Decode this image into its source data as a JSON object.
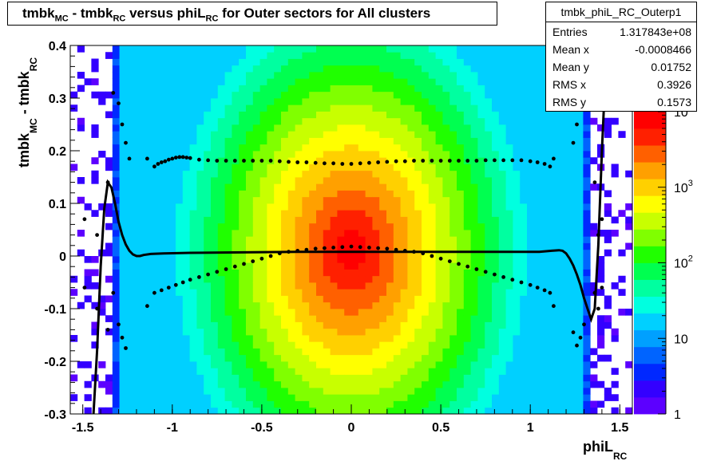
{
  "title": {
    "parts": [
      {
        "t": "tmbk",
        "sub": "MC"
      },
      {
        "t": " - tmbk",
        "sub": "RC"
      },
      {
        "t": " versus phiL",
        "sub": "RC"
      },
      {
        "t": " for Outer sectors for All clusters",
        "sub": ""
      }
    ]
  },
  "stats": {
    "name": "tmbk_phiL_RC_Outerp1",
    "rows": [
      {
        "key": "Entries",
        "value": "1.317843e+08"
      },
      {
        "key": "Mean x",
        "value": "-0.0008466"
      },
      {
        "key": "Mean y",
        "value": "0.01752"
      },
      {
        "key": "RMS x",
        "value": "0.3926"
      },
      {
        "key": "RMS y",
        "value": "0.1573"
      }
    ]
  },
  "chart_data": {
    "type": "heatmap",
    "xlabel": {
      "text": "phiL",
      "sub": "RC"
    },
    "ylabel": {
      "text": "tmbk",
      "sub1": "MC",
      "mid": " - tmbk",
      "sub2": "RC"
    },
    "xlim": [
      -1.57,
      1.57
    ],
    "ylim": [
      -0.3,
      0.4
    ],
    "x_ticks": [
      "-1.5",
      "-1",
      "-0.5",
      "0",
      "0.5",
      "1",
      "1.5"
    ],
    "x_tick_values": [
      -1.5,
      -1,
      -0.5,
      0,
      0.5,
      1,
      1.5
    ],
    "y_ticks": [
      "-0.3",
      "-0.2",
      "-0.1",
      "0",
      "0.1",
      "0.2",
      "0.3",
      "0.4"
    ],
    "y_tick_values": [
      -0.3,
      -0.2,
      -0.1,
      0,
      0.1,
      0.2,
      0.3,
      0.4
    ],
    "z_scale": "log",
    "z_range": [
      1,
      10000
    ],
    "z_ticks": [
      {
        "base": "1",
        "exp": "",
        "value": 1
      },
      {
        "base": "10",
        "exp": "",
        "value": 10
      },
      {
        "base": "10",
        "exp": "2",
        "value": 100
      },
      {
        "base": "10",
        "exp": "3",
        "value": 1000
      },
      {
        "base": "10",
        "exp": "4",
        "value": 10000
      }
    ],
    "palette": [
      "#5c00ff",
      "#3300ff",
      "#0028ff",
      "#0064ff",
      "#00a0ff",
      "#00d0ff",
      "#00ffe0",
      "#00ffa0",
      "#00ff50",
      "#20ff00",
      "#80ff00",
      "#c8ff00",
      "#ffff00",
      "#ffd000",
      "#ffa000",
      "#ff6000",
      "#ff2000",
      "#ff0000"
    ],
    "series": [
      {
        "name": "",
        "style": "points",
        "x": [
          -1.49,
          -1.42,
          -1.36,
          -1.33,
          -1.3,
          -1.28,
          -1.26,
          -1.24,
          -1.14,
          -1.1,
          -1.08,
          -1.06,
          -1.04,
          -1.02,
          -1.0,
          -0.98,
          -0.96,
          -0.94,
          -0.92,
          -0.9,
          -0.85,
          -0.8,
          -0.75,
          -0.7,
          -0.65,
          -0.6,
          -0.55,
          -0.5,
          -0.45,
          -0.4,
          -0.35,
          -0.3,
          -0.25,
          -0.2,
          -0.15,
          -0.1,
          -0.05,
          0.0,
          0.05,
          0.1,
          0.15,
          0.2,
          0.25,
          0.3,
          0.35,
          0.4,
          0.45,
          0.5,
          0.55,
          0.6,
          0.65,
          0.7,
          0.75,
          0.8,
          0.85,
          0.9,
          0.95,
          1.0,
          1.04,
          1.08,
          1.11,
          1.13,
          1.24,
          1.26,
          1.28,
          1.3,
          1.36,
          1.38,
          1.4
        ],
        "y": [
          0.07,
          0.04,
          0.14,
          0.31,
          0.29,
          0.25,
          0.215,
          0.185,
          0.185,
          0.17,
          0.175,
          0.178,
          0.18,
          0.183,
          0.185,
          0.187,
          0.188,
          0.188,
          0.187,
          0.186,
          0.183,
          0.182,
          0.181,
          0.181,
          0.181,
          0.181,
          0.181,
          0.181,
          0.181,
          0.18,
          0.179,
          0.178,
          0.178,
          0.177,
          0.176,
          0.176,
          0.175,
          0.175,
          0.176,
          0.177,
          0.178,
          0.179,
          0.18,
          0.18,
          0.181,
          0.181,
          0.181,
          0.181,
          0.181,
          0.181,
          0.181,
          0.181,
          0.182,
          0.182,
          0.182,
          0.182,
          0.182,
          0.18,
          0.178,
          0.175,
          0.17,
          0.185,
          0.215,
          0.25,
          0.29,
          0.31,
          0.14,
          0.04,
          0.07
        ]
      },
      {
        "name": "",
        "style": "points",
        "x": [
          -1.49,
          -1.42,
          -1.36,
          -1.33,
          -1.3,
          -1.28,
          -1.26,
          -1.14,
          -1.1,
          -1.06,
          -1.02,
          -0.98,
          -0.94,
          -0.9,
          -0.85,
          -0.8,
          -0.75,
          -0.7,
          -0.65,
          -0.6,
          -0.55,
          -0.5,
          -0.45,
          -0.4,
          -0.35,
          -0.3,
          -0.25,
          -0.2,
          -0.15,
          -0.1,
          -0.05,
          0.0,
          0.05,
          0.1,
          0.15,
          0.2,
          0.25,
          0.3,
          0.35,
          0.4,
          0.45,
          0.5,
          0.55,
          0.6,
          0.65,
          0.7,
          0.75,
          0.8,
          0.85,
          0.9,
          0.95,
          1.0,
          1.04,
          1.08,
          1.11,
          1.13,
          1.24,
          1.26,
          1.28,
          1.3,
          1.36,
          1.38,
          1.4
        ],
        "y": [
          -0.06,
          -0.1,
          -0.14,
          -0.07,
          -0.13,
          -0.155,
          -0.175,
          -0.095,
          -0.07,
          -0.065,
          -0.06,
          -0.055,
          -0.05,
          -0.045,
          -0.04,
          -0.035,
          -0.03,
          -0.025,
          -0.02,
          -0.015,
          -0.01,
          -0.005,
          0.0,
          0.005,
          0.008,
          0.01,
          0.012,
          0.014,
          0.015,
          0.016,
          0.017,
          0.018,
          0.017,
          0.016,
          0.015,
          0.014,
          0.012,
          0.01,
          0.008,
          0.005,
          0.0,
          -0.005,
          -0.01,
          -0.015,
          -0.02,
          -0.025,
          -0.03,
          -0.035,
          -0.04,
          -0.045,
          -0.05,
          -0.055,
          -0.06,
          -0.065,
          -0.07,
          -0.095,
          -0.145,
          -0.17,
          -0.155,
          -0.13,
          -0.07,
          -0.1,
          -0.06
        ]
      },
      {
        "name": "",
        "style": "line",
        "x": [
          -1.44,
          -1.42,
          -1.4,
          -1.38,
          -1.36,
          -1.34,
          -1.32,
          -1.3,
          -1.28,
          -1.26,
          -1.24,
          -1.22,
          -1.2,
          -1.18,
          -1.16,
          -1.12,
          -1.05,
          -0.9,
          -0.6,
          -0.3,
          0.0,
          0.3,
          0.6,
          0.9,
          1.05,
          1.12,
          1.16,
          1.18,
          1.2,
          1.22,
          1.24,
          1.26,
          1.28,
          1.3,
          1.32,
          1.34,
          1.36,
          1.38,
          1.4,
          1.42,
          1.44
        ],
        "y": [
          -0.3,
          -0.18,
          -0.02,
          0.09,
          0.14,
          0.13,
          0.1,
          0.065,
          0.04,
          0.022,
          0.01,
          0.003,
          0.0,
          0.0,
          0.002,
          0.004,
          0.005,
          0.006,
          0.007,
          0.008,
          0.008,
          0.008,
          0.008,
          0.008,
          0.008,
          0.01,
          0.011,
          0.01,
          0.005,
          -0.005,
          -0.018,
          -0.035,
          -0.055,
          -0.08,
          -0.1,
          -0.12,
          -0.1,
          0.02,
          0.2,
          0.35,
          0.45
        ]
      }
    ]
  }
}
